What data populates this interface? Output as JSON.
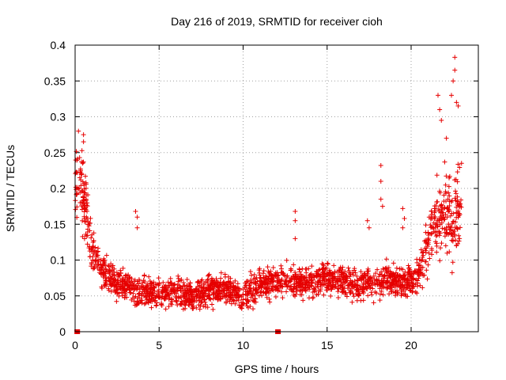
{
  "chart_data": {
    "type": "scatter",
    "title": "Day 216 of 2019, SRMTID for receiver cioh",
    "xlabel": "GPS time / hours",
    "ylabel": "SRMTID / TECUs",
    "xlim": [
      0,
      24
    ],
    "ylim": [
      0,
      0.4
    ],
    "x_ticks": [
      0,
      5,
      10,
      15,
      20
    ],
    "x_tick_labels": [
      "0",
      "5",
      "10",
      "15",
      "20"
    ],
    "y_ticks": [
      0,
      0.05,
      0.1,
      0.15,
      0.2,
      0.25,
      0.3,
      0.35,
      0.4
    ],
    "y_tick_labels": [
      "0",
      "0.05",
      "0.1",
      "0.15",
      "0.2",
      "0.25",
      "0.3",
      "0.35",
      "0.4"
    ],
    "grid": true,
    "marker": "+",
    "color": "#e60000",
    "series": [
      {
        "name": "SRMTID",
        "envelope_hours": [
          0.0,
          0.5,
          1.0,
          2.0,
          3.0,
          4.0,
          5.0,
          6.0,
          7.0,
          8.0,
          9.0,
          10.0,
          11.0,
          12.0,
          13.0,
          14.0,
          15.0,
          16.0,
          17.0,
          18.0,
          19.0,
          20.0,
          20.5,
          21.0,
          21.5,
          22.0,
          22.5,
          23.0
        ],
        "envelope_median": [
          0.21,
          0.19,
          0.11,
          0.075,
          0.065,
          0.055,
          0.055,
          0.055,
          0.05,
          0.06,
          0.06,
          0.05,
          0.065,
          0.07,
          0.07,
          0.07,
          0.075,
          0.07,
          0.065,
          0.07,
          0.07,
          0.07,
          0.085,
          0.12,
          0.15,
          0.17,
          0.15,
          0.2
        ],
        "envelope_spread": [
          0.05,
          0.05,
          0.03,
          0.02,
          0.02,
          0.02,
          0.02,
          0.02,
          0.02,
          0.02,
          0.02,
          0.02,
          0.02,
          0.02,
          0.02,
          0.02,
          0.02,
          0.02,
          0.02,
          0.02,
          0.02,
          0.02,
          0.025,
          0.04,
          0.05,
          0.06,
          0.06,
          0.05
        ],
        "points_per_hour": 95,
        "spikes": [
          {
            "x": 0.2,
            "y": 0.28
          },
          {
            "x": 0.5,
            "y": 0.275
          },
          {
            "x": 0.5,
            "y": 0.265
          },
          {
            "x": 3.6,
            "y": 0.168
          },
          {
            "x": 3.7,
            "y": 0.16
          },
          {
            "x": 3.7,
            "y": 0.145
          },
          {
            "x": 13.1,
            "y": 0.168
          },
          {
            "x": 13.1,
            "y": 0.155
          },
          {
            "x": 13.1,
            "y": 0.13
          },
          {
            "x": 18.2,
            "y": 0.232
          },
          {
            "x": 18.2,
            "y": 0.21
          },
          {
            "x": 18.2,
            "y": 0.185
          },
          {
            "x": 18.3,
            "y": 0.175
          },
          {
            "x": 17.4,
            "y": 0.155
          },
          {
            "x": 17.5,
            "y": 0.145
          },
          {
            "x": 19.5,
            "y": 0.172
          },
          {
            "x": 19.6,
            "y": 0.158
          },
          {
            "x": 19.5,
            "y": 0.145
          },
          {
            "x": 21.6,
            "y": 0.33
          },
          {
            "x": 21.7,
            "y": 0.31
          },
          {
            "x": 21.8,
            "y": 0.295
          },
          {
            "x": 22.1,
            "y": 0.27
          },
          {
            "x": 22.4,
            "y": 0.33
          },
          {
            "x": 22.5,
            "y": 0.35
          },
          {
            "x": 22.6,
            "y": 0.383
          },
          {
            "x": 22.6,
            "y": 0.365
          },
          {
            "x": 22.7,
            "y": 0.32
          },
          {
            "x": 22.8,
            "y": 0.315
          }
        ],
        "zero_points_x": [
          0.1,
          0.15,
          12.05,
          12.1
        ]
      }
    ]
  }
}
